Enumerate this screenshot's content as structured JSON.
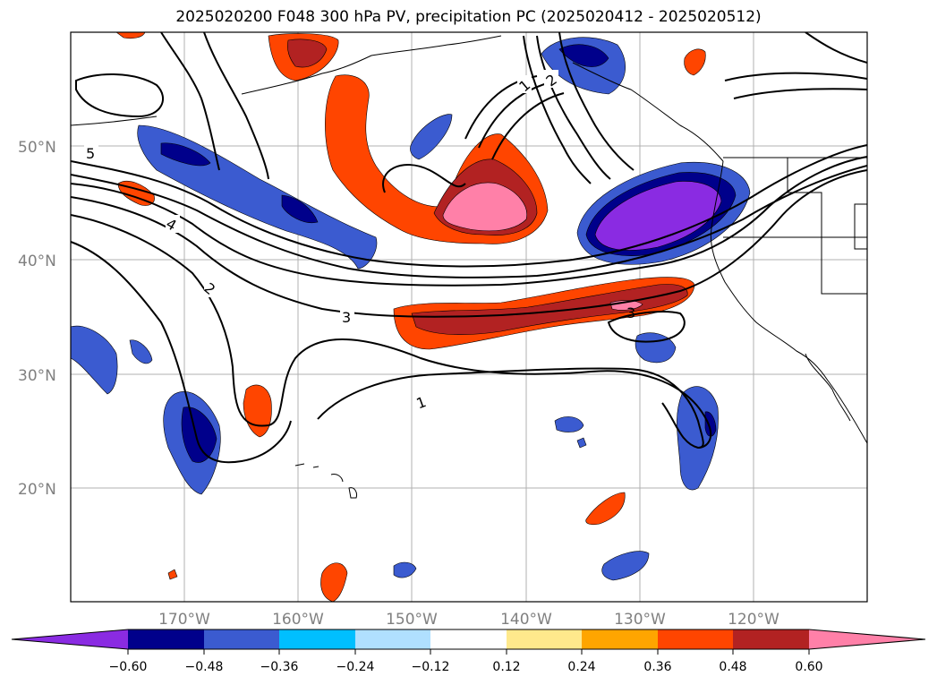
{
  "map": {
    "title": "2025020200 F048 300 hPa PV, precipitation PC (2025020412 - 2025020512)",
    "lat_labels": [
      "50°N",
      "40°N",
      "30°N",
      "20°N"
    ],
    "lon_labels": [
      "170°W",
      "160°W",
      "150°W",
      "140°W",
      "130°W",
      "120°W"
    ],
    "pv_contour_labels": [
      "5",
      "4",
      "2",
      "3",
      "1",
      "1",
      "2",
      "3"
    ],
    "colors": {
      "purple": "#8a2be2",
      "navy": "#00008b",
      "blue": "#3b5bd0",
      "deepsky": "#00bfff",
      "lightblue": "#b0e0ff",
      "white": "#ffffff",
      "khaki": "#ffe98c",
      "orange": "#ffa500",
      "orangered": "#ff4500",
      "firebrick": "#b22222",
      "pink": "#ff80a8"
    }
  },
  "colorbar": {
    "ticks": [
      "−0.60",
      "−0.48",
      "−0.36",
      "−0.24",
      "−0.12",
      "0.12",
      "0.24",
      "0.36",
      "0.48",
      "0.60"
    ]
  }
}
